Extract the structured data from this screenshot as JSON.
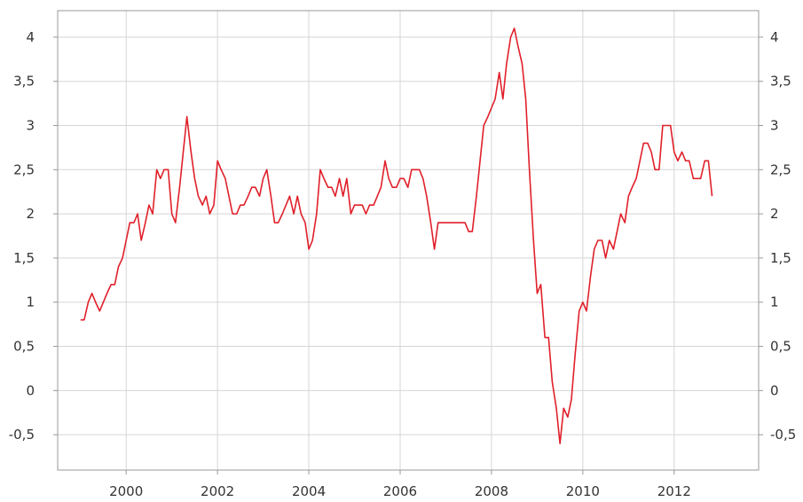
{
  "chart_data": {
    "type": "line",
    "title": "",
    "xlabel": "",
    "ylabel": "",
    "xlim": [
      1998.5,
      2013.85
    ],
    "ylim": [
      -0.9,
      4.3
    ],
    "grid": true,
    "x_ticks": [
      2000,
      2002,
      2004,
      2006,
      2008,
      2010,
      2012
    ],
    "x_tick_labels": [
      "2000",
      "2002",
      "2004",
      "2006",
      "2008",
      "2010",
      "2012"
    ],
    "y_ticks": [
      -0.5,
      0,
      0.5,
      1,
      1.5,
      2,
      2.5,
      3,
      3.5,
      4
    ],
    "y_tick_labels": [
      "-0,5",
      "0",
      "0,5",
      "1",
      "1,5",
      "2",
      "2,5",
      "3",
      "3,5",
      "4"
    ],
    "colors": {
      "line": "#e0202a",
      "grid": "#d5d5d5",
      "axis": "#999999"
    },
    "series": [
      {
        "x": [
          1999.0,
          1999.08,
          1999.17,
          1999.25,
          1999.33,
          1999.42,
          1999.5,
          1999.58,
          1999.67,
          1999.75,
          1999.83,
          1999.92,
          2000.0,
          2000.08,
          2000.17,
          2000.25,
          2000.33,
          2000.42,
          2000.5,
          2000.58,
          2000.67,
          2000.75,
          2000.83,
          2000.92,
          2001.0,
          2001.08,
          2001.17,
          2001.25,
          2001.33,
          2001.42,
          2001.5,
          2001.58,
          2001.67,
          2001.75,
          2001.83,
          2001.92,
          2002.0,
          2002.08,
          2002.17,
          2002.25,
          2002.33,
          2002.42,
          2002.5,
          2002.58,
          2002.67,
          2002.75,
          2002.83,
          2002.92,
          2003.0,
          2003.08,
          2003.17,
          2003.25,
          2003.33,
          2003.42,
          2003.5,
          2003.58,
          2003.67,
          2003.75,
          2003.83,
          2003.92,
          2004.0,
          2004.08,
          2004.17,
          2004.25,
          2004.33,
          2004.42,
          2004.5,
          2004.58,
          2004.67,
          2004.75,
          2004.83,
          2004.92,
          2005.0,
          2005.08,
          2005.17,
          2005.25,
          2005.33,
          2005.42,
          2005.5,
          2005.58,
          2005.67,
          2005.75,
          2005.83,
          2005.92,
          2006.0,
          2006.08,
          2006.17,
          2006.25,
          2006.33,
          2006.42,
          2006.5,
          2006.58,
          2006.67,
          2006.75,
          2006.83,
          2006.92,
          2007.0,
          2007.08,
          2007.17,
          2007.25,
          2007.33,
          2007.42,
          2007.5,
          2007.58,
          2007.67,
          2007.75,
          2007.83,
          2007.92,
          2008.0,
          2008.08,
          2008.17,
          2008.25,
          2008.33,
          2008.42,
          2008.5,
          2008.58,
          2008.67,
          2008.75,
          2008.83,
          2008.92,
          2009.0,
          2009.08,
          2009.17,
          2009.25,
          2009.33,
          2009.42,
          2009.5,
          2009.58,
          2009.67,
          2009.75,
          2009.83,
          2009.92,
          2010.0,
          2010.08,
          2010.17,
          2010.25,
          2010.33,
          2010.42,
          2010.5,
          2010.58,
          2010.67,
          2010.75,
          2010.83,
          2010.92,
          2011.0,
          2011.08,
          2011.17,
          2011.25,
          2011.33,
          2011.42,
          2011.5,
          2011.58,
          2011.67,
          2011.75,
          2011.83,
          2011.92,
          2012.0,
          2012.08,
          2012.17,
          2012.25,
          2012.33,
          2012.42,
          2012.5,
          2012.58,
          2012.67,
          2012.75,
          2012.83
        ],
        "values": [
          0.8,
          0.8,
          1.0,
          1.1,
          1.0,
          0.9,
          1.0,
          1.1,
          1.2,
          1.2,
          1.4,
          1.5,
          1.7,
          1.9,
          1.9,
          2.0,
          1.7,
          1.9,
          2.1,
          2.0,
          2.5,
          2.4,
          2.5,
          2.5,
          2.0,
          1.9,
          2.3,
          2.7,
          3.1,
          2.7,
          2.4,
          2.2,
          2.1,
          2.2,
          2.0,
          2.1,
          2.6,
          2.5,
          2.4,
          2.2,
          2.0,
          2.0,
          2.1,
          2.1,
          2.2,
          2.3,
          2.3,
          2.2,
          2.4,
          2.5,
          2.2,
          1.9,
          1.9,
          2.0,
          2.1,
          2.2,
          2.0,
          2.2,
          2.0,
          1.9,
          1.6,
          1.7,
          2.0,
          2.5,
          2.4,
          2.3,
          2.3,
          2.2,
          2.4,
          2.2,
          2.4,
          2.0,
          2.1,
          2.1,
          2.1,
          2.0,
          2.1,
          2.1,
          2.2,
          2.3,
          2.6,
          2.4,
          2.3,
          2.3,
          2.4,
          2.4,
          2.3,
          2.5,
          2.5,
          2.5,
          2.4,
          2.2,
          1.9,
          1.6,
          1.9,
          1.9,
          1.9,
          1.9,
          1.9,
          1.9,
          1.9,
          1.9,
          1.8,
          1.8,
          2.2,
          2.6,
          3.0,
          3.1,
          3.2,
          3.3,
          3.6,
          3.3,
          3.7,
          4.0,
          4.1,
          3.9,
          3.7,
          3.3,
          2.5,
          1.7,
          1.1,
          1.2,
          0.6,
          0.6,
          0.1,
          -0.2,
          -0.6,
          -0.2,
          -0.3,
          -0.1,
          0.4,
          0.9,
          1.0,
          0.9,
          1.3,
          1.6,
          1.7,
          1.7,
          1.5,
          1.7,
          1.6,
          1.8,
          2.0,
          1.9,
          2.2,
          2.3,
          2.4,
          2.6,
          2.8,
          2.8,
          2.7,
          2.5,
          2.5,
          3.0,
          3.0,
          3.0,
          2.7,
          2.6,
          2.7,
          2.6,
          2.6,
          2.4,
          2.4,
          2.4,
          2.6,
          2.6,
          2.2
        ]
      }
    ]
  }
}
